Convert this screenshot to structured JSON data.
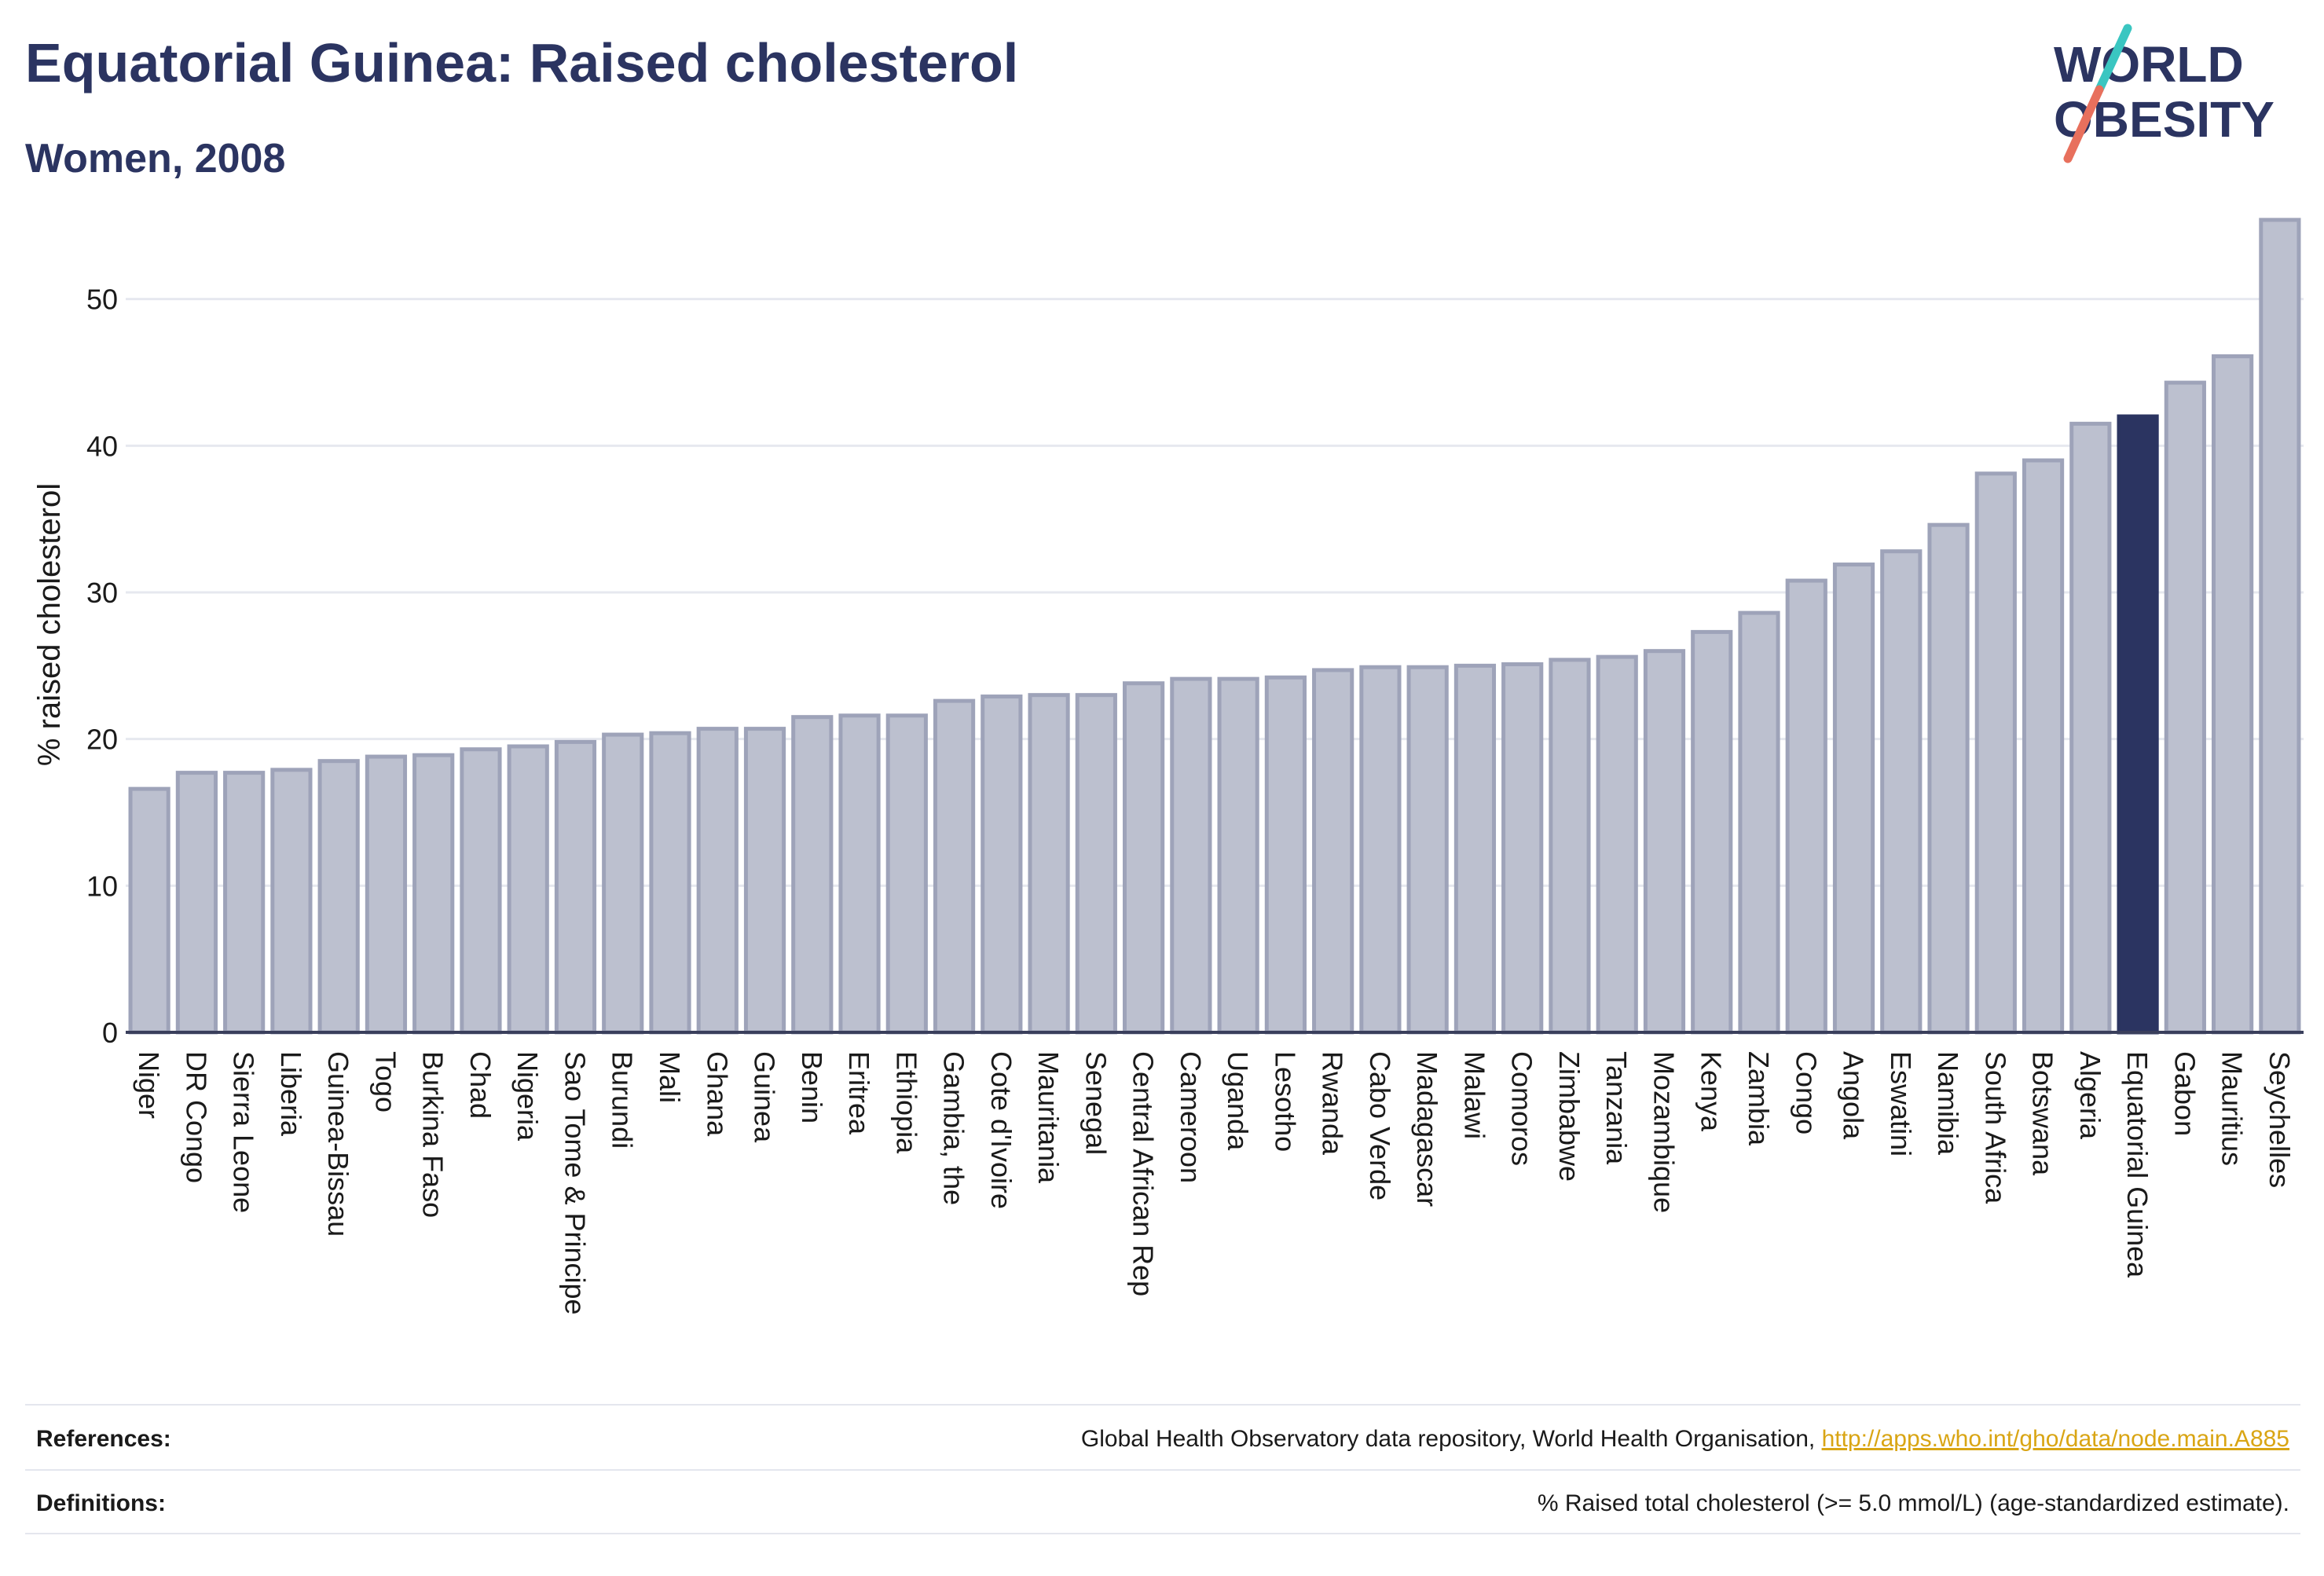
{
  "header": {
    "title": "Equatorial Guinea: Raised cholesterol",
    "subtitle": "Women, 2008",
    "logo_line1": "WORLD",
    "logo_line2": "OBESITY"
  },
  "colors": {
    "bar": "#bcc0cf",
    "bar_stroke": "#9ea3b9",
    "highlight": "#2b3461",
    "grid": "#e6e8ef",
    "axis": "#3a3f5c",
    "logo_teal": "#3ac6c1",
    "logo_coral": "#e8705d",
    "link": "#d9a514"
  },
  "chart_data": {
    "type": "bar",
    "ylabel": "% raised cholesterol",
    "ylim": [
      0,
      57
    ],
    "yticks": [
      0,
      10,
      20,
      30,
      40,
      50
    ],
    "grid": true,
    "highlight": "Equatorial Guinea",
    "categories": [
      "Niger",
      "DR Congo",
      "Sierra Leone",
      "Liberia",
      "Guinea-Bissau",
      "Togo",
      "Burkina Faso",
      "Chad",
      "Nigeria",
      "Sao Tome & Principe",
      "Burundi",
      "Mali",
      "Ghana",
      "Guinea",
      "Benin",
      "Eritrea",
      "Ethiopia",
      "Gambia, the",
      "Cote d'Ivoire",
      "Mauritania",
      "Senegal",
      "Central African Rep",
      "Cameroon",
      "Uganda",
      "Lesotho",
      "Rwanda",
      "Cabo Verde",
      "Madagascar",
      "Malawi",
      "Comoros",
      "Zimbabwe",
      "Tanzania",
      "Mozambique",
      "Kenya",
      "Zambia",
      "Congo",
      "Angola",
      "Eswatini",
      "Namibia",
      "South Africa",
      "Botswana",
      "Algeria",
      "Equatorial Guinea",
      "Gabon",
      "Mauritius",
      "Seychelles"
    ],
    "values": [
      16.6,
      17.7,
      17.7,
      17.9,
      18.5,
      18.8,
      18.9,
      19.3,
      19.5,
      19.8,
      20.3,
      20.4,
      20.7,
      20.7,
      21.5,
      21.6,
      21.6,
      22.6,
      22.9,
      23.0,
      23.0,
      23.8,
      24.1,
      24.1,
      24.2,
      24.7,
      24.9,
      24.9,
      25.0,
      25.1,
      25.4,
      25.6,
      26.0,
      27.3,
      28.6,
      30.8,
      31.9,
      32.8,
      34.6,
      38.1,
      39.0,
      41.5,
      42.0,
      44.3,
      46.1,
      55.4
    ]
  },
  "footer": {
    "references_label": "References:",
    "references_text": "Global Health Observatory data repository, World Health Organisation, ",
    "references_link": "http://apps.who.int/gho/data/node.main.A885",
    "definitions_label": "Definitions:",
    "definitions_text": "% Raised total cholesterol (>= 5.0 mmol/L) (age-standardized estimate)."
  }
}
